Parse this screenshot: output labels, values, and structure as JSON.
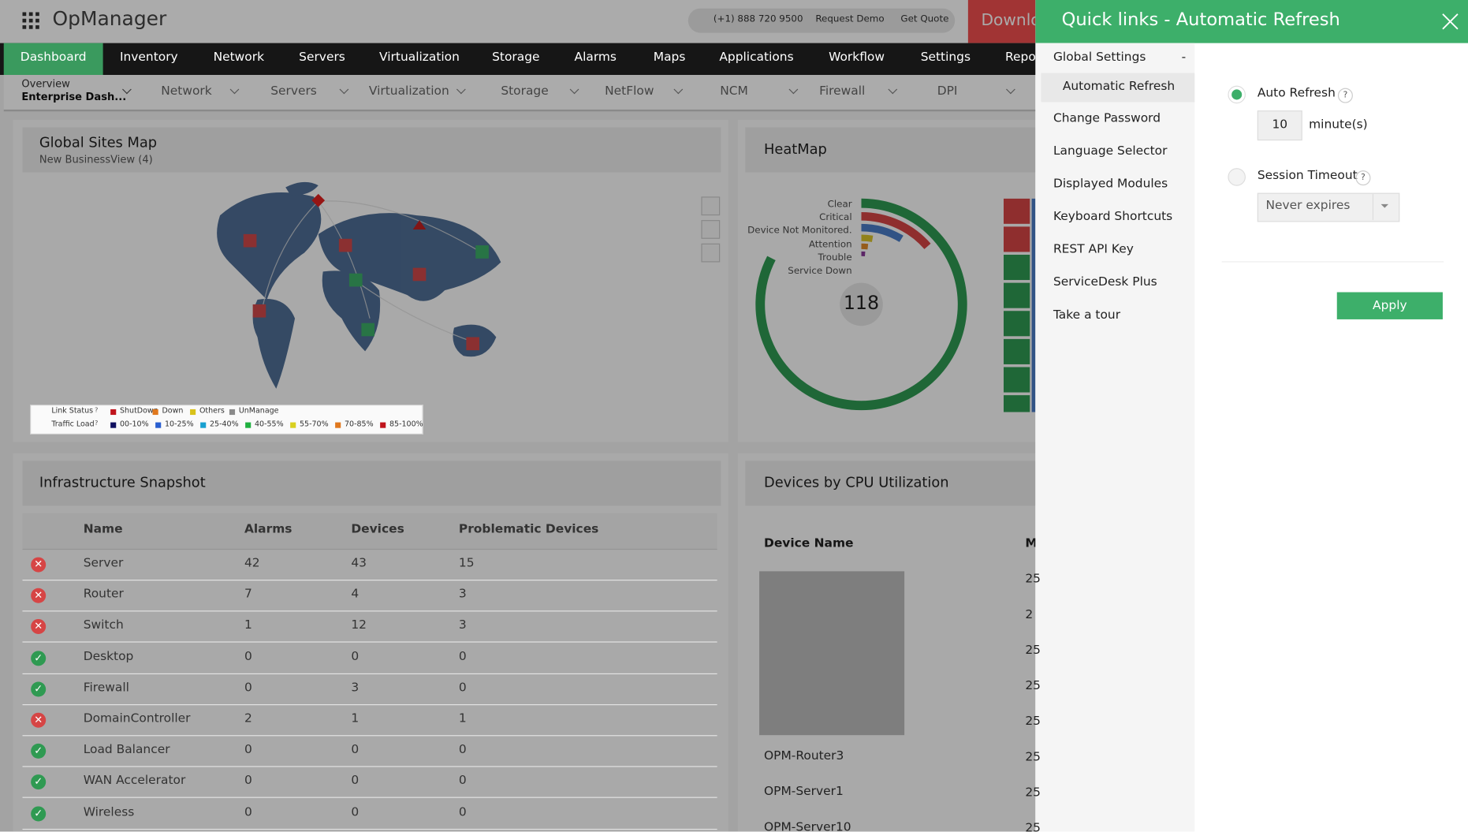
{
  "header": {
    "app_name": "OpManager",
    "phone": "(+1) 888 720 9500",
    "request_demo": "Request Demo",
    "get_quote": "Get Quote",
    "download": "Downlo"
  },
  "nav": {
    "tabs": [
      "Dashboard",
      "Inventory",
      "Network",
      "Servers",
      "Virtualization",
      "Storage",
      "Alarms",
      "Maps",
      "Applications",
      "Workflow",
      "Settings",
      "Repo"
    ],
    "active": 0
  },
  "subnav": {
    "overview": "Overview",
    "dashboard": "Enterprise Dash...",
    "items": [
      "Network",
      "Servers",
      "Virtualization",
      "Storage",
      "NetFlow",
      "NCM",
      "Firewall",
      "DPI"
    ]
  },
  "map_widget": {
    "title": "Global Sites Map",
    "subtitle": "New BusinessView (4)",
    "link_status": {
      "label": "Link Status",
      "help": "?",
      "items": [
        {
          "name": "ShutDown",
          "color": "#c0141c"
        },
        {
          "name": "Down",
          "color": "#e0781e"
        },
        {
          "name": "Others",
          "color": "#d9c21a"
        },
        {
          "name": "UnManage",
          "color": "#8a8a8a"
        }
      ]
    },
    "traffic_load": {
      "label": "Traffic Load",
      "help": "?",
      "items": [
        {
          "name": "00-10%",
          "color": "#101060"
        },
        {
          "name": "10-25%",
          "color": "#2a5fd0"
        },
        {
          "name": "25-40%",
          "color": "#18a0d0"
        },
        {
          "name": "40-55%",
          "color": "#20b040"
        },
        {
          "name": "55-70%",
          "color": "#d9d020"
        },
        {
          "name": "70-85%",
          "color": "#e0781e"
        },
        {
          "name": "85-100%",
          "color": "#c0141c"
        }
      ]
    }
  },
  "heatmap_widget": {
    "title": "HeatMap",
    "legend": [
      "Clear",
      "Critical",
      "Device Not Monitored.",
      "Attention",
      "Trouble",
      "Service Down"
    ],
    "total": 118
  },
  "snapshot_widget": {
    "title": "Infrastructure Snapshot",
    "columns": [
      "Name",
      "Alarms",
      "Devices",
      "Problematic Devices"
    ],
    "rows": [
      {
        "icon": "error",
        "cells": [
          "Server",
          42,
          43,
          15
        ]
      },
      {
        "icon": "error",
        "cells": [
          "Router",
          7,
          4,
          3
        ]
      },
      {
        "icon": "error",
        "cells": [
          "Switch",
          1,
          12,
          3
        ]
      },
      {
        "icon": "ok",
        "cells": [
          "Desktop",
          0,
          0,
          0
        ]
      },
      {
        "icon": "ok",
        "cells": [
          "Firewall",
          0,
          3,
          0
        ]
      },
      {
        "icon": "error",
        "cells": [
          "DomainController",
          2,
          1,
          1
        ]
      },
      {
        "icon": "ok",
        "cells": [
          "Load Balancer",
          0,
          0,
          0
        ]
      },
      {
        "icon": "ok",
        "cells": [
          "WAN Accelerator",
          0,
          0,
          0
        ]
      },
      {
        "icon": "ok",
        "cells": [
          "Wireless",
          0,
          0,
          0
        ]
      }
    ]
  },
  "cpu_widget": {
    "title": "Devices by CPU Utilization",
    "columns": [
      "Device Name",
      "M"
    ],
    "devices": [
      "OPM-Router3",
      "OPM-Server1",
      "OPM-Server10"
    ],
    "partial_values": [
      "25",
      "2",
      "25",
      "25",
      "25",
      "25",
      "25",
      "25"
    ]
  },
  "panel": {
    "title": "Quick links - Automatic Refresh",
    "group": "Global Settings",
    "group_toggle": "-",
    "active_item": "Automatic Refresh",
    "items": [
      "Change Password",
      "Language Selector",
      "Displayed Modules",
      "Keyboard Shortcuts",
      "REST API Key",
      "ServiceDesk Plus",
      "Take a tour"
    ],
    "auto_refresh": "Auto Refresh",
    "help": "?",
    "refresh_value": "10",
    "refresh_unit": "minute(s)",
    "session_timeout": "Session Timeout",
    "session_value": "Never expires",
    "apply": "Apply"
  }
}
